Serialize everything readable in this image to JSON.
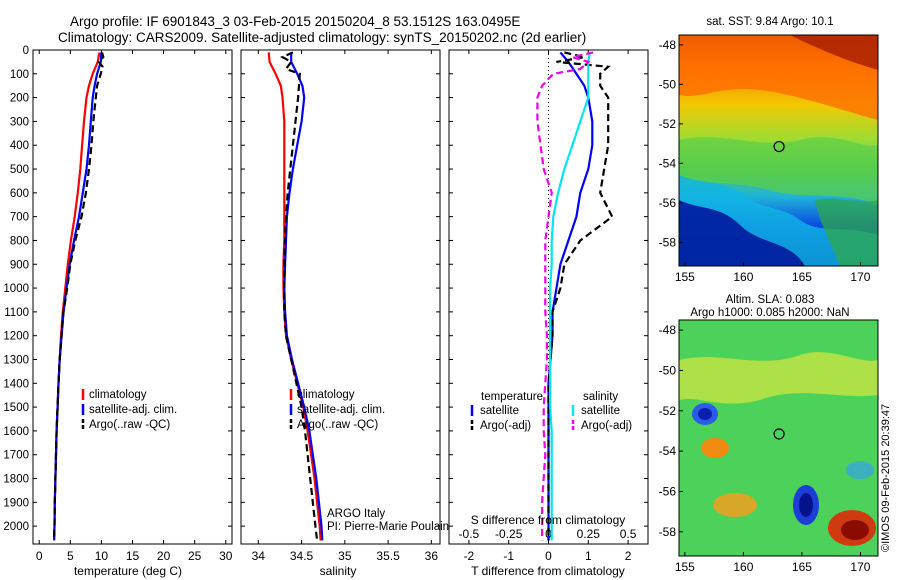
{
  "header": {
    "line1": "Argo profile: IF 6901843_3 03-Feb-2015 20150204_8 53.1512S 163.0495E",
    "line2": "Climatology: CARS2009. Satellite-adjusted climatology: synTS_20150202.nc (2d earlier)"
  },
  "credits": {
    "program": "ARGO Italy",
    "pi": "PI: Pierre-Marie Poulain",
    "watermark": "©IMOS 09-Feb-2015 20:39:47"
  },
  "colors": {
    "climatology": "#ff0000",
    "satellite": "#0000ff",
    "argo": "#000000",
    "salinity_satellite": "#00e5ee",
    "salinity_argo": "#ee00ee"
  },
  "chart_data": [
    {
      "type": "line",
      "id": "temperature",
      "xlabel": "temperature (deg C)",
      "xlim": [
        -1,
        31
      ],
      "xticks": [
        0,
        5,
        10,
        15,
        20,
        25,
        30
      ],
      "ylim": [
        0,
        2075
      ],
      "yreversed": true,
      "yticks": [
        0,
        100,
        200,
        300,
        400,
        500,
        600,
        700,
        800,
        900,
        1000,
        1100,
        1200,
        1300,
        1400,
        1500,
        1600,
        1700,
        1800,
        1900,
        2000
      ],
      "legend": [
        "climatology",
        "satellite-adj. clim.",
        "Argo(..raw -QC)"
      ],
      "series": [
        {
          "name": "climatology",
          "color": "#ff0000",
          "style": "solid",
          "depth": [
            10,
            50,
            100,
            150,
            200,
            300,
            400,
            500,
            600,
            700,
            800,
            900,
            1000,
            1100,
            1200,
            1300,
            1400,
            1500,
            1600,
            1700,
            1800,
            1900,
            2000,
            2060
          ],
          "values": [
            9.7,
            9.4,
            8.6,
            8.0,
            7.6,
            7.2,
            6.9,
            6.6,
            6.2,
            5.7,
            5.1,
            4.6,
            4.2,
            3.8,
            3.5,
            3.3,
            3.1,
            2.95,
            2.8,
            2.7,
            2.6,
            2.5,
            2.45,
            2.4
          ]
        },
        {
          "name": "satellite-adj. clim.",
          "color": "#0000ff",
          "style": "solid",
          "depth": [
            10,
            50,
            100,
            150,
            200,
            300,
            400,
            500,
            600,
            700,
            800,
            900,
            1000,
            1100,
            1200,
            1300,
            1400,
            1500,
            1600,
            1700,
            1800,
            1900,
            2000,
            2060
          ],
          "values": [
            10.0,
            9.9,
            9.3,
            8.9,
            8.6,
            8.3,
            8.0,
            7.6,
            7.0,
            6.4,
            5.6,
            4.9,
            4.4,
            3.9,
            3.6,
            3.3,
            3.1,
            2.95,
            2.8,
            2.7,
            2.6,
            2.5,
            2.45,
            2.4
          ]
        },
        {
          "name": "Argo(..raw -QC)",
          "color": "#000000",
          "style": "dashed",
          "depth": [
            10,
            30,
            50,
            70,
            100,
            150,
            200,
            300,
            400,
            500,
            600,
            700,
            800,
            900,
            1000,
            1100,
            1200,
            1300,
            1400,
            1500,
            1600,
            1700,
            1800,
            1900,
            2000,
            2060
          ],
          "values": [
            10.1,
            10.3,
            9.6,
            10.2,
            9.9,
            9.3,
            9.1,
            8.7,
            8.4,
            8.0,
            7.5,
            6.8,
            5.8,
            5.0,
            4.5,
            3.9,
            3.6,
            3.3,
            3.1,
            2.95,
            2.8,
            2.7,
            2.6,
            2.5,
            2.45,
            2.4
          ]
        }
      ]
    },
    {
      "type": "line",
      "id": "salinity",
      "xlabel": "salinity",
      "xlim": [
        33.8,
        36.1
      ],
      "xticks": [
        34,
        34.5,
        35,
        35.5,
        36
      ],
      "ylim": [
        0,
        2075
      ],
      "yreversed": true,
      "legend": [
        "climatology",
        "satellite-adj. clim.",
        "Argo(..raw -QC)"
      ],
      "series": [
        {
          "name": "climatology",
          "color": "#ff0000",
          "style": "solid",
          "depth": [
            10,
            50,
            100,
            150,
            200,
            300,
            400,
            500,
            600,
            700,
            800,
            900,
            1000,
            1100,
            1200,
            1300,
            1400,
            1500,
            1600,
            1700,
            1800,
            1900,
            2000,
            2060
          ],
          "values": [
            34.12,
            34.13,
            34.2,
            34.26,
            34.28,
            34.3,
            34.3,
            34.3,
            34.3,
            34.3,
            34.3,
            34.29,
            34.29,
            34.3,
            34.32,
            34.38,
            34.45,
            34.52,
            34.57,
            34.61,
            34.65,
            34.68,
            34.71,
            34.72
          ]
        },
        {
          "name": "satellite-adj. clim.",
          "color": "#0000ff",
          "style": "solid",
          "depth": [
            10,
            50,
            100,
            150,
            200,
            300,
            400,
            500,
            600,
            700,
            800,
            900,
            1000,
            1100,
            1200,
            1300,
            1400,
            1500,
            1600,
            1700,
            1800,
            1900,
            2000,
            2060
          ],
          "values": [
            34.38,
            34.38,
            34.45,
            34.51,
            34.53,
            34.5,
            34.45,
            34.4,
            34.36,
            34.33,
            34.32,
            34.31,
            34.3,
            34.31,
            34.33,
            34.39,
            34.46,
            34.53,
            34.59,
            34.63,
            34.67,
            34.7,
            34.73,
            34.74
          ]
        },
        {
          "name": "Argo(..raw -QC)",
          "color": "#000000",
          "style": "dashed",
          "depth": [
            10,
            30,
            50,
            80,
            100,
            150,
            200,
            300,
            400,
            500,
            600,
            700,
            800,
            900,
            1000,
            1100,
            1200,
            1300,
            1400,
            1500,
            1600,
            1700,
            1800,
            1900,
            2000,
            2060
          ],
          "values": [
            34.4,
            34.28,
            34.38,
            34.32,
            34.48,
            34.47,
            34.46,
            34.43,
            34.4,
            34.37,
            34.34,
            34.32,
            34.31,
            34.3,
            34.3,
            34.3,
            34.32,
            34.38,
            34.44,
            34.5,
            34.54,
            34.57,
            34.6,
            34.63,
            34.66,
            34.68
          ]
        }
      ]
    },
    {
      "type": "line",
      "id": "difference",
      "xlabel": "T difference from climatology",
      "xlabel_top": "S difference from climatology",
      "xlim": [
        -2.5,
        2.5
      ],
      "xticks": [
        -2,
        -1,
        0,
        1,
        2
      ],
      "xticks_s": [
        "-0.5",
        "-0.25",
        "0",
        "0.25",
        "0.5"
      ],
      "ylim": [
        0,
        2075
      ],
      "yreversed": true,
      "legend_temperature": {
        "title": "temperature",
        "items": [
          "satellite",
          "Argo(-adj)"
        ]
      },
      "legend_salinity": {
        "title": "salinity",
        "items": [
          "satellite",
          "Argo(-adj)"
        ]
      },
      "series": [
        {
          "name": "satellite (temperature)",
          "color": "#0000ff",
          "style": "solid",
          "depth": [
            10,
            50,
            100,
            150,
            200,
            300,
            400,
            500,
            600,
            700,
            800,
            900,
            1000,
            1100,
            1200,
            1300,
            1400,
            1500,
            1600,
            1700,
            1800,
            1900,
            2000,
            2060
          ],
          "values": [
            0.3,
            0.5,
            0.7,
            0.9,
            1.0,
            1.1,
            1.1,
            1.0,
            0.8,
            0.7,
            0.5,
            0.3,
            0.2,
            0.1,
            0.1,
            0.05,
            0,
            0,
            0,
            0,
            0,
            0,
            0,
            0
          ]
        },
        {
          "name": "Argo(-adj) (temperature)",
          "color": "#000000",
          "style": "dashed",
          "depth": [
            10,
            30,
            50,
            70,
            100,
            150,
            200,
            300,
            400,
            500,
            600,
            700,
            800,
            900,
            1000,
            1100,
            1200,
            1300,
            1400,
            1500,
            1600,
            1700,
            1800,
            1900,
            2000,
            2060
          ],
          "values": [
            0.4,
            0.9,
            0.2,
            1.5,
            1.3,
            1.3,
            1.5,
            1.5,
            1.5,
            1.4,
            1.3,
            1.6,
            0.8,
            0.4,
            0.3,
            0.1,
            0.1,
            0.05,
            0,
            0,
            0,
            0,
            0,
            0,
            0,
            0
          ]
        },
        {
          "name": "satellite (salinity)",
          "color": "#00e5ee",
          "style": "solid",
          "depth": [
            10,
            50,
            100,
            150,
            200,
            300,
            400,
            500,
            600,
            700,
            800,
            900,
            1000,
            1100,
            1200,
            1300,
            1400,
            1500,
            1600,
            1700,
            1800,
            1900,
            2000,
            2060
          ],
          "values": [
            0.26,
            0.25,
            0.25,
            0.25,
            0.25,
            0.2,
            0.15,
            0.1,
            0.06,
            0.03,
            0.02,
            0.02,
            0.01,
            0.01,
            0.01,
            0.01,
            0.01,
            0.01,
            0.02,
            0.02,
            0.02,
            0.02,
            0.02,
            0.02
          ]
        },
        {
          "name": "Argo(-adj) (salinity)",
          "color": "#ee00ee",
          "style": "dashed",
          "depth": [
            10,
            30,
            50,
            80,
            100,
            150,
            200,
            300,
            400,
            500,
            600,
            700,
            800,
            900,
            1000,
            1100,
            1200,
            1300,
            1400,
            1500,
            1600,
            1700,
            1800,
            1900,
            2000,
            2060
          ],
          "values": [
            0.28,
            0.15,
            0.25,
            0.2,
            0.03,
            -0.04,
            -0.07,
            -0.07,
            -0.05,
            -0.03,
            0.02,
            0.0,
            -0.02,
            -0.02,
            -0.02,
            -0.02,
            -0.01,
            -0.01,
            -0.02,
            -0.03,
            -0.03,
            -0.02,
            -0.03,
            -0.04,
            -0.04,
            -0.04
          ]
        }
      ]
    },
    {
      "type": "heatmap",
      "id": "sst_map",
      "title": "sat. SST: 9.84 Argo: 10.1",
      "xticks": [
        155,
        160,
        165,
        170
      ],
      "yticks": [
        -48,
        -50,
        -52,
        -54,
        -56,
        -58
      ],
      "xlim": [
        154.5,
        171.5
      ],
      "ylim": [
        -59.2,
        -47.5
      ],
      "marker": {
        "lon": 163.05,
        "lat": -53.15
      }
    },
    {
      "type": "heatmap",
      "id": "sla_map",
      "title": "Altim. SLA: 0.083",
      "subtitle": "Argo h1000: 0.085 h2000: NaN",
      "xticks": [
        155,
        160,
        165,
        170
      ],
      "yticks": [
        -48,
        -50,
        -52,
        -54,
        -56,
        -58
      ],
      "xlim": [
        154.5,
        171.5
      ],
      "ylim": [
        -59.2,
        -47.5
      ],
      "marker": {
        "lon": 163.05,
        "lat": -53.15
      }
    }
  ]
}
